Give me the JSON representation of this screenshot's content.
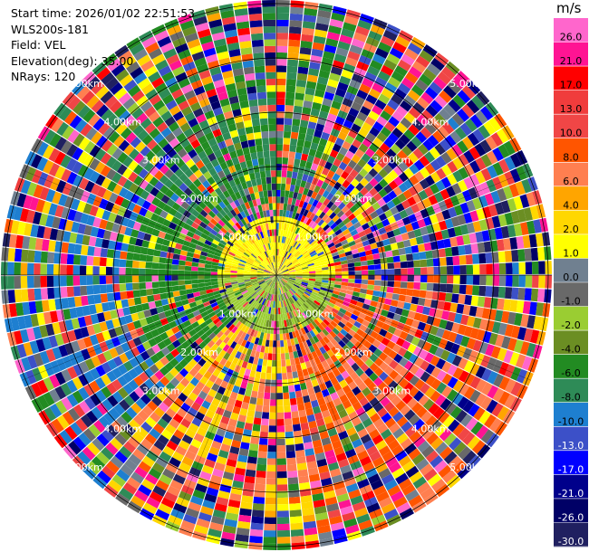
{
  "header": {
    "start_time": "Start time: 2026/01/02 22:51:53",
    "instrument": "WLS200s-181",
    "field": "Field: VEL",
    "elevation": "Elevation(deg): 35.00",
    "nrays": "NRays: 120"
  },
  "rings": {
    "labels": [
      "1.00km",
      "2.00km",
      "3.00km",
      "4.00km",
      "5.00km"
    ],
    "color": "#000000",
    "label_color": "#ffffff"
  },
  "colorbar": {
    "unit": "m/s",
    "ticks": [
      "26.0",
      "21.0",
      "17.0",
      "13.0",
      "10.0",
      "8.0",
      "6.0",
      "4.0",
      "2.0",
      "1.0",
      "0.0",
      "-1.0",
      "-2.0",
      "-4.0",
      "-6.0",
      "-8.0",
      "-10.0",
      "-13.0",
      "-17.0",
      "-21.0",
      "-26.0",
      "-30.0"
    ],
    "colors": [
      "#ff66cc",
      "#ff1493",
      "#ff0000",
      "#f03c3c",
      "#f04646",
      "#ff5500",
      "#ff7f50",
      "#ffa500",
      "#ffd700",
      "#ffff00",
      "#708090",
      "#696969",
      "#9acd32",
      "#6b8e23",
      "#228b22",
      "#2e8b57",
      "#1e7fd0",
      "#3c50c8",
      "#0000ff",
      "#00008b",
      "#000066",
      "#202060"
    ]
  }
}
